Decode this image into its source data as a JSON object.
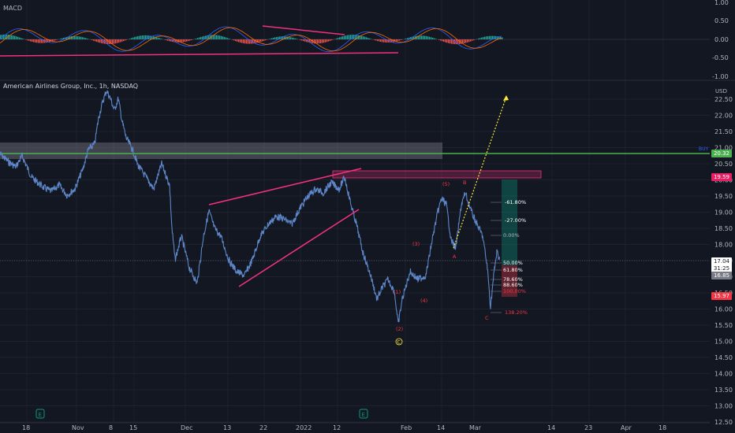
{
  "macd": {
    "title": "MACD",
    "ticks": [
      "1.00",
      "0.50",
      "0.00",
      "-0.50",
      "-1.00"
    ]
  },
  "main": {
    "title": "American Airlines Group, Inc., 1h, NASDAQ",
    "currency": "USD",
    "price_ticks": [
      "22.50",
      "22.00",
      "21.50",
      "21.00",
      "20.50",
      "20.00",
      "19.50",
      "19.00",
      "18.50",
      "18.00",
      "17.50",
      "17.00",
      "16.50",
      "16.00",
      "15.50",
      "15.00",
      "14.50",
      "14.00",
      "13.50",
      "13.00",
      "12.50"
    ],
    "buy_label": "BUY",
    "tags": {
      "buy_price": "20.32",
      "resistance": "19.59",
      "last_price": "17.04",
      "countdown": "31:25",
      "prev_close": "16.85",
      "low": "15.97"
    }
  },
  "x_axis": [
    "18",
    "Nov",
    "8",
    "15",
    "Dec",
    "13",
    "22",
    "2022",
    "12",
    "Feb",
    "14",
    "Mar",
    "14",
    "23",
    "Apr",
    "18"
  ],
  "fib_levels": [
    "-61.80%",
    "-27.00%",
    "0.00%",
    "50.00%",
    "61.80%",
    "78.60%",
    "88.60%",
    "100.00%",
    "138.20%"
  ],
  "wave_labels": {
    "w5": "(5)",
    "w3": "(3)",
    "w1": "(1)",
    "w4": "(4)",
    "w2": "(2)",
    "wc": "C",
    "a": "A",
    "b": "B",
    "c": "C",
    "c2": "C"
  },
  "earnings_icon": "E",
  "colors": {
    "background": "#131722",
    "magenta": "#f0317f",
    "green": "#4caf50",
    "red": "#f23645",
    "price_line": "#5d87c9",
    "yellow": "#ffeb3b"
  }
}
